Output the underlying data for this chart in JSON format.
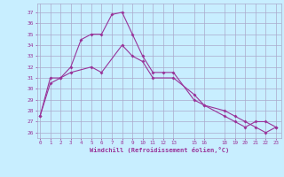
{
  "line1_x": [
    0,
    1,
    2,
    3,
    4,
    5,
    6,
    7,
    8,
    9,
    10,
    11,
    12,
    13,
    15,
    16,
    18,
    19,
    20,
    21,
    22,
    23
  ],
  "line1_y": [
    27.5,
    30.5,
    31.0,
    32.0,
    34.5,
    35.0,
    35.0,
    36.8,
    37.0,
    35.0,
    33.0,
    31.5,
    31.5,
    31.5,
    29.0,
    28.5,
    27.5,
    27.0,
    26.5,
    27.0,
    27.0,
    26.5
  ],
  "line2_x": [
    0,
    1,
    2,
    3,
    5,
    6,
    8,
    9,
    10,
    11,
    13,
    15,
    16,
    18,
    19,
    20,
    21,
    22,
    23
  ],
  "line2_y": [
    27.5,
    31.0,
    31.0,
    31.5,
    32.0,
    31.5,
    34.0,
    33.0,
    32.5,
    31.0,
    31.0,
    29.5,
    28.5,
    28.0,
    27.5,
    27.0,
    26.5,
    26.0,
    26.5
  ],
  "line_color": "#993399",
  "bg_color": "#c8eeff",
  "grid_color": "#aaaacc",
  "xlabel": "Windchill (Refroidissement éolien,°C)",
  "tick_color": "#993399",
  "yticks": [
    26,
    27,
    28,
    29,
    30,
    31,
    32,
    33,
    34,
    35,
    36,
    37
  ],
  "xtick_positions": [
    0,
    1,
    2,
    3,
    4,
    5,
    6,
    7,
    8,
    9,
    10,
    11,
    12,
    13,
    15,
    16,
    18,
    19,
    20,
    21,
    22,
    23
  ],
  "xtick_labels": [
    "0",
    "1",
    "2",
    "3",
    "4",
    "5",
    "6",
    "7",
    "8",
    "9",
    "10",
    "11",
    "12",
    "13",
    "15",
    "16",
    "18",
    "19",
    "20",
    "21",
    "22",
    "23"
  ],
  "ylim": [
    25.5,
    37.8
  ],
  "xlim": [
    -0.3,
    23.5
  ]
}
